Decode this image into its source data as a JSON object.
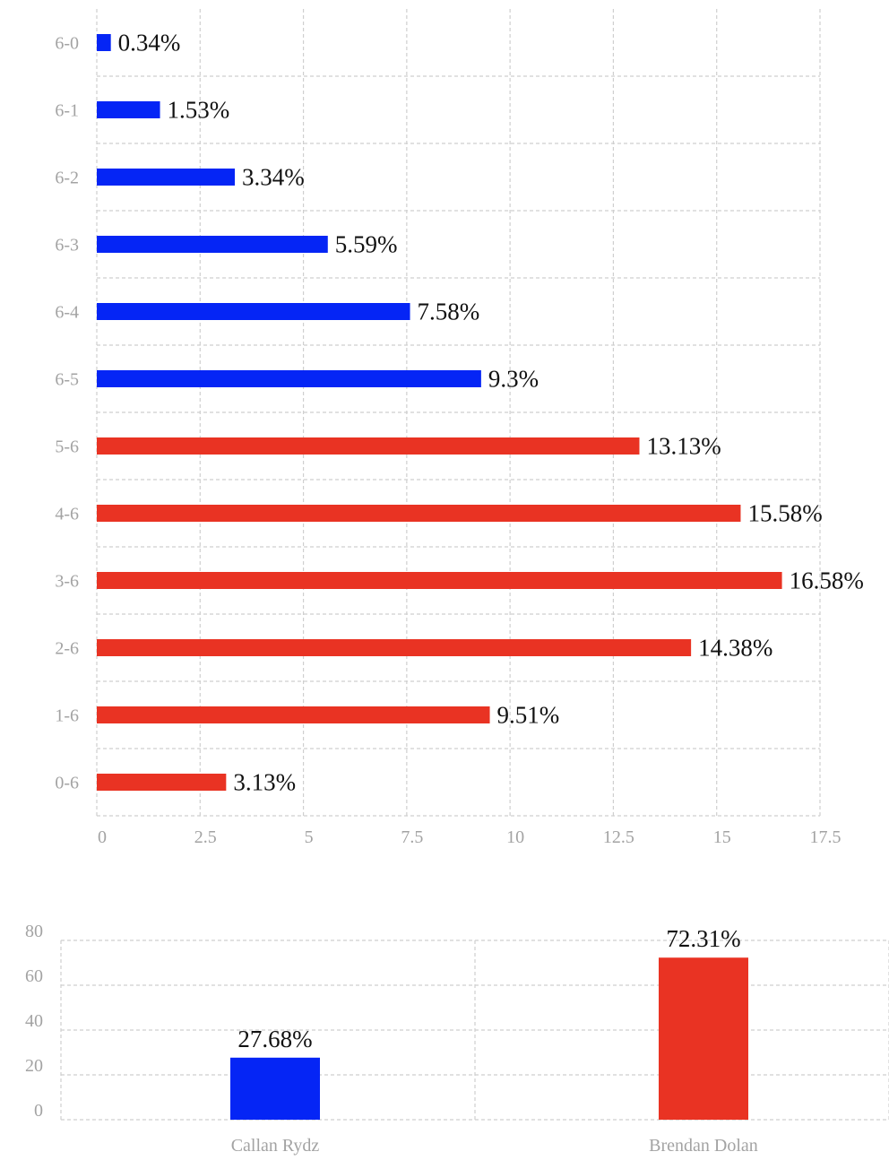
{
  "colors": {
    "player1": "#0525f5",
    "player2": "#e93323",
    "grid": "#cfcfcf",
    "tick_text": "#a3a3a3",
    "label_text": "#111111"
  },
  "chart_data": [
    {
      "type": "bar",
      "orientation": "horizontal",
      "categories": [
        "6-0",
        "6-1",
        "6-2",
        "6-3",
        "6-4",
        "6-5",
        "5-6",
        "4-6",
        "3-6",
        "2-6",
        "1-6",
        "0-6"
      ],
      "values": [
        0.34,
        1.53,
        3.34,
        5.59,
        7.58,
        9.3,
        13.13,
        15.58,
        16.58,
        14.38,
        9.51,
        3.13
      ],
      "data_labels": [
        "0.34%",
        "1.53%",
        "3.34%",
        "5.59%",
        "7.58%",
        "9.3%",
        "13.13%",
        "15.58%",
        "16.58%",
        "14.38%",
        "9.51%",
        "3.13%"
      ],
      "bar_colors": [
        "#0525f5",
        "#0525f5",
        "#0525f5",
        "#0525f5",
        "#0525f5",
        "#0525f5",
        "#e93323",
        "#e93323",
        "#e93323",
        "#e93323",
        "#e93323",
        "#e93323"
      ],
      "xticks": [
        "0",
        "2.5",
        "5",
        "7.5",
        "10",
        "12.5",
        "15",
        "17.5"
      ],
      "xlim": [
        0,
        17.5
      ],
      "grid": true,
      "legend": "none"
    },
    {
      "type": "bar",
      "orientation": "vertical",
      "categories": [
        "Callan Rydz",
        "Brendan Dolan"
      ],
      "values": [
        27.68,
        72.31
      ],
      "data_labels": [
        "27.68%",
        "72.31%"
      ],
      "bar_colors": [
        "#0525f5",
        "#e93323"
      ],
      "yticks": [
        "0",
        "20",
        "40",
        "60",
        "80"
      ],
      "ylim": [
        0,
        80
      ],
      "grid": true,
      "legend": "none"
    }
  ]
}
